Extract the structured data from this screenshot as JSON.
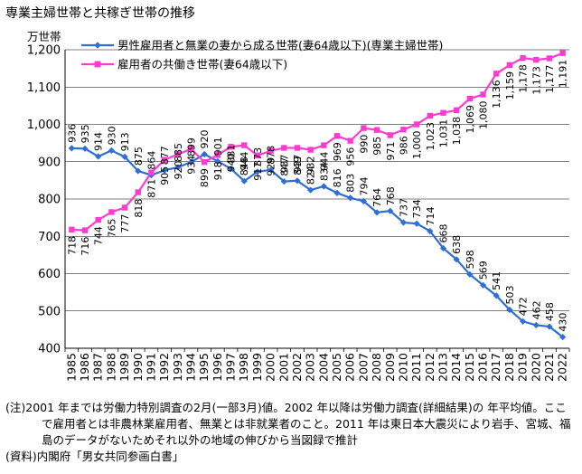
{
  "title": "専業主婦世帯と共稼ぎ世帯の推移",
  "unit": "万世帯",
  "notes": {
    "note": "(注)2001 年までは労働力特別調査の2月(一部3月)値。2002 年以降は労働力調査(詳細結果)の 年平均値。ここで雇用者とは非農林業雇用者、無業とは非就業者のこと。2011 年は東日本大震災により岩手、宮城、福島のデータがないためそれ以外の地域の伸びから当図録で推計",
    "source": "(資料)内閣府「男女共同参画白書」"
  },
  "chart_data": {
    "type": "line",
    "categories": [
      "1985",
      "1986",
      "1987",
      "1988",
      "1989",
      "1990",
      "1991",
      "1992",
      "1993",
      "1994",
      "1995",
      "1996",
      "1997",
      "1998",
      "1999",
      "2000",
      "2001",
      "2002",
      "2003",
      "2004",
      "2005",
      "2006",
      "2007",
      "2008",
      "2009",
      "2010",
      "2011",
      "2012",
      "2013",
      "2014",
      "2015",
      "2016",
      "2017",
      "2018",
      "2019",
      "2020",
      "2021",
      "2022"
    ],
    "ylim": [
      400,
      1200
    ],
    "yticks": [
      "400",
      "500",
      "600",
      "700",
      "800",
      "900",
      "1,000",
      "1,100",
      "1,200"
    ],
    "grid": "horizontal",
    "legend_position": "top",
    "series": [
      {
        "name": "男性雇用者と無業の妻から成る世帯(妻64歳以下)(専業主婦世帯)",
        "color": "#2e6fd6",
        "marker": "diamond",
        "values": [
          936,
          935,
          914,
          930,
          913,
          875,
          864,
          877,
          885,
          899,
          920,
          901,
          881,
          848,
          873,
          878,
          847,
          849,
          824,
          834,
          816,
          803,
          794,
          764,
          768,
          737,
          734,
          714,
          668,
          638,
          598,
          569,
          541,
          503,
          472,
          462,
          458,
          430
        ],
        "labels": [
          "936",
          "935",
          "914",
          "930",
          "913",
          "875",
          "864",
          "877",
          "885",
          "899",
          "920",
          "901",
          "881",
          "848",
          "873",
          "878",
          "847",
          "849",
          "824",
          "834",
          "816",
          "803",
          "794",
          "764",
          "768",
          "737",
          "734",
          "714",
          "668",
          "638",
          "598",
          "569",
          "541",
          "503",
          "472",
          "462",
          "458",
          "430"
        ]
      },
      {
        "name": "雇用者の共働き世帯(妻64歳以下)",
        "color": "#ff3ad0",
        "marker": "square",
        "values": [
          718,
          716,
          744,
          765,
          777,
          818,
          871,
          905,
          920,
          934,
          899,
          918,
          940,
          944,
          917,
          929,
          937,
          937,
          932,
          944,
          969,
          956,
          990,
          985,
          971,
          986,
          1000,
          1023,
          1031,
          1038,
          1069,
          1080,
          1136,
          1159,
          1178,
          1173,
          1177,
          1191
        ],
        "labels": [
          "718",
          "716",
          "744",
          "765",
          "777",
          "818",
          "871",
          "905",
          "920",
          "934",
          "899",
          "918",
          "940",
          "944",
          "917",
          "929",
          "937",
          "937",
          "932",
          "944",
          "969",
          "956",
          "990",
          "985",
          "971",
          "986",
          "1,000",
          "1,023",
          "1,031",
          "1,038",
          "1,069",
          "1,080",
          "1,136",
          "1,159",
          "1,178",
          "1,173",
          "1,177",
          "1,191"
        ]
      }
    ]
  }
}
